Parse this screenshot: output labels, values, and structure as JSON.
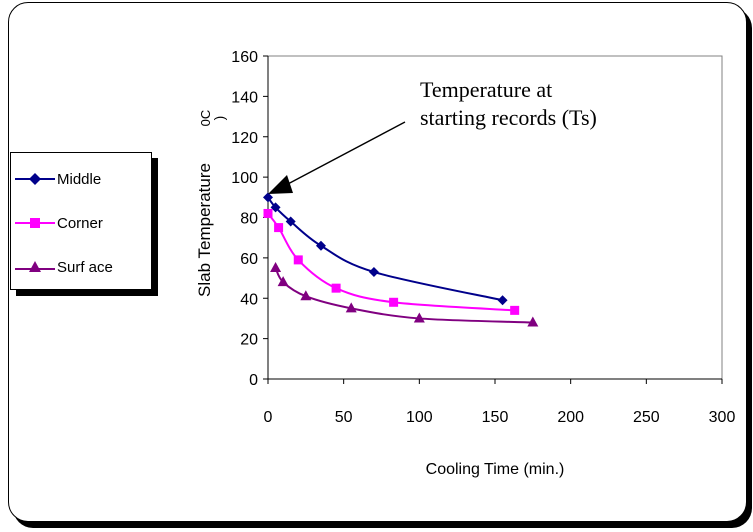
{
  "chart_data": {
    "type": "line",
    "xlabel": "Cooling Time (min.)",
    "ylabel": "Slab Temperature",
    "ylabel_unit": "0C",
    "xlim": [
      0,
      300
    ],
    "ylim": [
      0,
      160
    ],
    "x_ticks": [
      "0",
      "50",
      "100",
      "150",
      "200",
      "250",
      "300"
    ],
    "y_ticks": [
      "0",
      "20",
      "40",
      "60",
      "80",
      "100",
      "120",
      "140",
      "160"
    ],
    "grid": false,
    "legend_position": "left",
    "annotation": {
      "lines": [
        "Temperature at",
        "starting records (Ts)"
      ],
      "points_to": [
        0,
        90
      ]
    },
    "series": [
      {
        "name": "Middle",
        "color": "#00008b",
        "marker": "diamond",
        "x": [
          0,
          5,
          15,
          35,
          70,
          155
        ],
        "y": [
          90,
          85,
          78,
          66,
          53,
          39
        ]
      },
      {
        "name": "Corner",
        "color": "#ff00ff",
        "marker": "square",
        "x": [
          0,
          7,
          20,
          45,
          83,
          163
        ],
        "y": [
          82,
          75,
          59,
          45,
          38,
          34
        ]
      },
      {
        "name": "Surf ace",
        "color": "#800080",
        "marker": "triangle",
        "x": [
          5,
          10,
          25,
          55,
          100,
          175
        ],
        "y": [
          55,
          48,
          41,
          35,
          30,
          28
        ]
      }
    ]
  }
}
